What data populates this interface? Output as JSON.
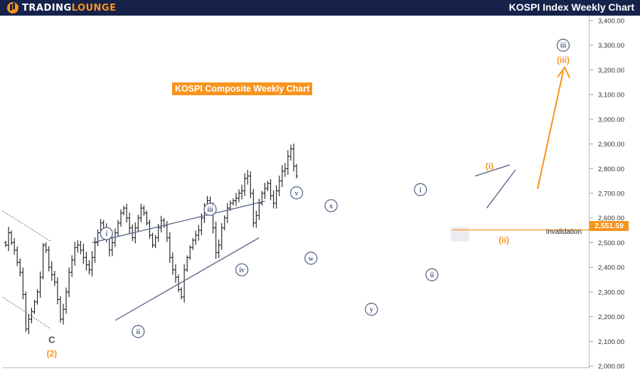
{
  "header": {
    "brand_part1": "TradingLounge",
    "title": "KOSPI Index Weekly Chart"
  },
  "subtitle": "KOSPI Composite Weekly Chart",
  "colors": {
    "header_bg": "#17224a",
    "accent": "#f7941d",
    "wave_blue": "#5c6a8e",
    "candle": "#1a1a1a"
  },
  "chart_data": {
    "type": "ohlc",
    "ylim": [
      1980,
      3420
    ],
    "y_ticks": [
      "3,400.00",
      "3,300.00",
      "3,200.00",
      "3,100.00",
      "3,000.00",
      "2,900.00",
      "2,800.00",
      "2,700.00",
      "2,600.00",
      "2,500.00",
      "2,400.00",
      "2,300.00",
      "2,200.00",
      "2,100.00",
      "2,000.00"
    ],
    "y_tick_values": [
      3400,
      3300,
      3200,
      3100,
      3000,
      2900,
      2800,
      2700,
      2600,
      2500,
      2400,
      2300,
      2200,
      2100,
      2000
    ],
    "close_path": [
      2490,
      2540,
      2500,
      2470,
      2420,
      2380,
      2290,
      2150,
      2190,
      2220,
      2260,
      2300,
      2360,
      2490,
      2470,
      2400,
      2370,
      2340,
      2270,
      2190,
      2230,
      2300,
      2380,
      2430,
      2480,
      2490,
      2470,
      2440,
      2410,
      2390,
      2440,
      2500,
      2540,
      2580,
      2560,
      2520,
      2470,
      2500,
      2540,
      2580,
      2620,
      2640,
      2600,
      2560,
      2520,
      2560,
      2600,
      2640,
      2620,
      2580,
      2530,
      2490,
      2520,
      2560,
      2590,
      2570,
      2520,
      2440,
      2390,
      2360,
      2310,
      2280,
      2390,
      2440,
      2480,
      2510,
      2530,
      2550,
      2600,
      2640,
      2670,
      2640,
      2560,
      2460,
      2490,
      2560,
      2600,
      2640,
      2660,
      2670,
      2680,
      2700,
      2710,
      2760,
      2770,
      2700,
      2580,
      2610,
      2660,
      2700,
      2720,
      2740,
      2690,
      2660,
      2710,
      2750,
      2790,
      2800,
      2850,
      2880,
      2810,
      2770
    ],
    "current_price": 2551.59,
    "current_price_label": "2,551.59",
    "invalidation_label": "invalidation",
    "target_label_blue": "iii",
    "target_label_orange": "(iii)",
    "wave_labels": [
      {
        "text": "C",
        "style": "plain",
        "price": 2105,
        "bar": 16
      },
      {
        "text": "(2)",
        "style": "orange",
        "price": 2050,
        "bar": 16
      },
      {
        "text": "i",
        "style": "blue-circle",
        "price": 2537,
        "bar": 35
      },
      {
        "text": "ii",
        "style": "blue-circle",
        "price": 2140,
        "bar": 46
      },
      {
        "text": "iii",
        "style": "blue-circle",
        "price": 2635,
        "bar": 71
      },
      {
        "text": "iv",
        "style": "blue-circle",
        "price": 2390,
        "bar": 82
      },
      {
        "text": "v",
        "style": "blue-circle",
        "price": 2702,
        "bar": 101
      },
      {
        "text": "w",
        "style": "blue-circle",
        "price": 2437,
        "bar": 106
      },
      {
        "text": "x",
        "style": "blue-circle",
        "price": 2650,
        "bar": 113
      },
      {
        "text": "y",
        "style": "blue-circle",
        "price": 2230,
        "bar": 127
      },
      {
        "text": "i",
        "style": "blue-circle",
        "price": 2715,
        "bar": 144
      },
      {
        "text": "ii",
        "style": "blue-circle",
        "price": 2370,
        "bar": 148
      },
      {
        "text": "(i)",
        "style": "orange",
        "price": 2810,
        "bar": 168
      },
      {
        "text": "(ii)",
        "style": "orange",
        "price": 2510,
        "bar": 173
      }
    ]
  }
}
